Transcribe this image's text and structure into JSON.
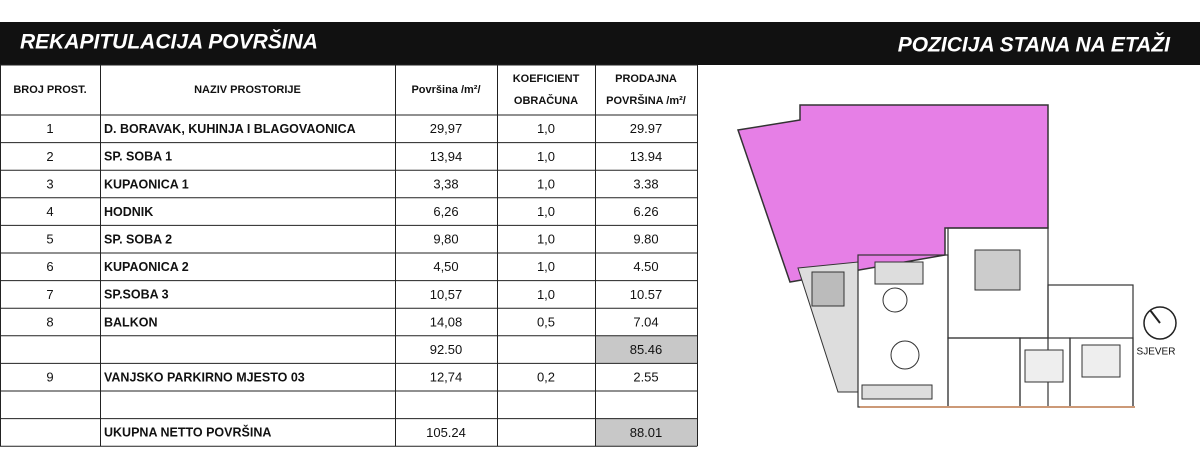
{
  "header": {
    "left": "REKAPITULACIJA POVRŠINA",
    "right": "POZICIJA STANA NA ETAŽI"
  },
  "table": {
    "columns": [
      {
        "lines": [
          "BROJ PROST."
        ]
      },
      {
        "lines": [
          "NAZIV PROSTORIJE"
        ]
      },
      {
        "lines": [
          "Površina /m²/"
        ]
      },
      {
        "lines": [
          "KOEFICIENT",
          "OBRAČUNA"
        ]
      },
      {
        "lines": [
          "PRODAJNA",
          "POVRŠINA /m²/"
        ]
      }
    ],
    "rows": [
      {
        "no": "1",
        "name": "D. BORAVAK, KUHINJA I BLAGOVAONICA",
        "area": "29,97",
        "coef": "1,0",
        "sale": "29.97"
      },
      {
        "no": "2",
        "name": "SP. SOBA 1",
        "area": "13,94",
        "coef": "1,0",
        "sale": "13.94"
      },
      {
        "no": "3",
        "name": "KUPAONICA 1",
        "area": "3,38",
        "coef": "1,0",
        "sale": "3.38"
      },
      {
        "no": "4",
        "name": "HODNIK",
        "area": "6,26",
        "coef": "1,0",
        "sale": "6.26"
      },
      {
        "no": "5",
        "name": "SP. SOBA 2",
        "area": "9,80",
        "coef": "1,0",
        "sale": "9.80"
      },
      {
        "no": "6",
        "name": "KUPAONICA 2",
        "area": "4,50",
        "coef": "1,0",
        "sale": "4.50"
      },
      {
        "no": "7",
        "name": "SP.SOBA 3",
        "area": "10,57",
        "coef": "1,0",
        "sale": "10.57"
      },
      {
        "no": "8",
        "name": "BALKON",
        "area": "14,08",
        "coef": "0,5",
        "sale": "7.04"
      },
      {
        "area": "92.50",
        "sale": "85.46",
        "shaded": true
      },
      {
        "no": "9",
        "name": "VANJSKO PARKIRNO MJESTO 03",
        "area": "12,74",
        "coef": "0,2",
        "sale": "2.55"
      },
      {},
      {
        "name": "UKUPNA NETTO POVRŠINA",
        "area": "105.24",
        "sale": "88.01",
        "shaded": true
      }
    ]
  },
  "compass": {
    "label": "SJEVER"
  }
}
